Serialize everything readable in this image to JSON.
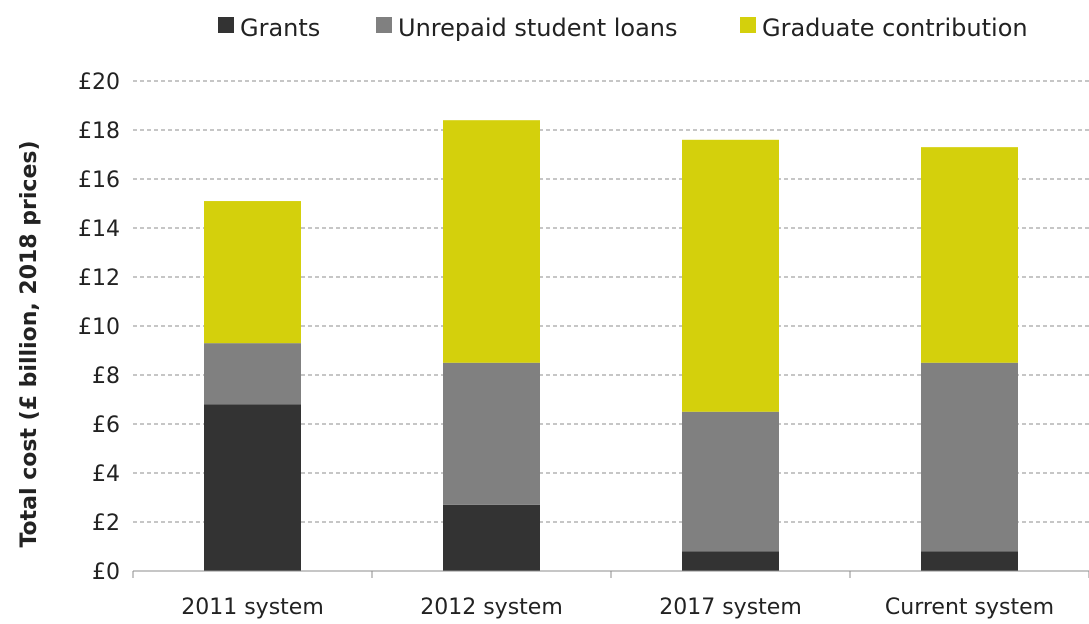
{
  "chart_data": {
    "type": "bar",
    "stacked": true,
    "title": "",
    "xlabel": "",
    "ylabel": "Total cost (£ billion, 2018 prices)",
    "ylim": [
      0,
      20
    ],
    "ytick_step": 2,
    "ytick_prefix": "£",
    "grid": true,
    "legend_position": "top",
    "categories": [
      "2011 system",
      "2012 system",
      "2017 system",
      "Current system"
    ],
    "series": [
      {
        "name": "Grants",
        "color": "#333333",
        "values": [
          6.8,
          2.7,
          0.8,
          0.8
        ]
      },
      {
        "name": "Unrepaid student loans",
        "color": "#808080",
        "values": [
          2.5,
          5.8,
          5.7,
          7.7
        ]
      },
      {
        "name": "Graduate contribution",
        "color": "#d4d00c",
        "values": [
          5.8,
          9.9,
          11.1,
          8.8
        ]
      }
    ]
  }
}
